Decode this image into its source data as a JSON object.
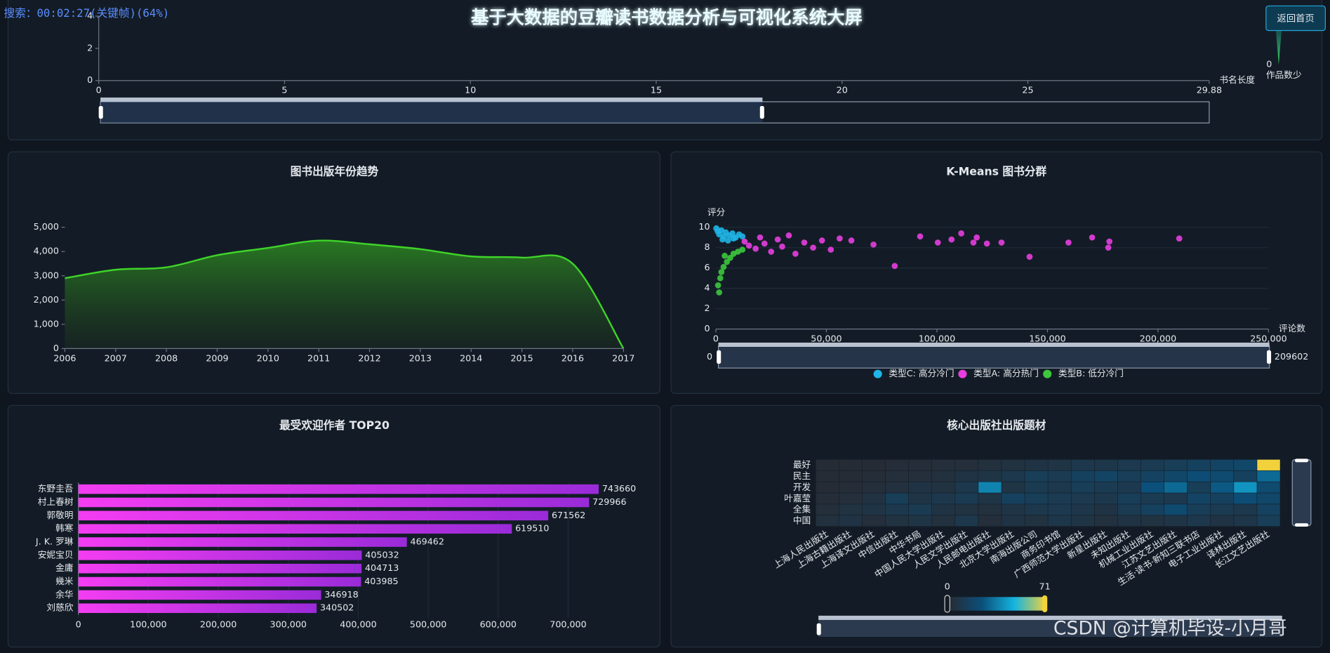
{
  "header": {
    "title": "基于大数据的豆瓣读书数据分析与可视化系统大屏",
    "button": "返回首页",
    "overlay": "搜索：00:02:27(关键帧)(64%)",
    "watermark": "CSDN @计算机毕设-小月哥"
  },
  "chart_data": [
    {
      "type": "bar",
      "x_label": "书名长度",
      "xlim": [
        0,
        29.88
      ],
      "xticks": [
        0,
        5,
        10,
        15,
        20,
        25,
        29.88
      ],
      "ylim": [
        0,
        4
      ],
      "yticks": [
        0,
        2,
        4
      ],
      "visual_map": {
        "min": 0,
        "label": "作品数少"
      }
    },
    {
      "type": "line",
      "title": "图书出版年份趋势",
      "area": true,
      "smooth": true,
      "color": "#3fd42a",
      "x": [
        2006,
        2007,
        2008,
        2009,
        2010,
        2011,
        2012,
        2013,
        2014,
        2015,
        2016,
        2017
      ],
      "values": [
        2900,
        3250,
        3350,
        3850,
        4150,
        4450,
        4300,
        4100,
        3800,
        3750,
        3500,
        0
      ],
      "xlim": [
        2006,
        2017
      ],
      "xticks": [
        2006,
        2007,
        2008,
        2009,
        2010,
        2011,
        2012,
        2013,
        2014,
        2015,
        2016,
        2017
      ],
      "ylim": [
        0,
        5000
      ],
      "yticks": [
        0,
        {
          "value": 1000,
          "label": "1,000"
        },
        {
          "value": 2000,
          "label": "2,000"
        },
        {
          "value": 3000,
          "label": "3,000"
        },
        {
          "value": 4000,
          "label": "4,000"
        },
        {
          "value": 5000,
          "label": "5,000"
        }
      ]
    },
    {
      "type": "scatter",
      "title": "K-Means 图书分群",
      "x_label": "评论数",
      "y_label": "评分",
      "xlim": [
        0,
        250000
      ],
      "xticks": [
        0,
        {
          "value": 50000,
          "label": "50,000"
        },
        {
          "value": 100000,
          "label": "100,000"
        },
        {
          "value": 150000,
          "label": "150,000"
        },
        {
          "value": 200000,
          "label": "200,000"
        },
        {
          "value": 250000,
          "label": "250,000"
        }
      ],
      "ylim": [
        0,
        10
      ],
      "yticks": [
        0,
        2,
        4,
        6,
        8,
        10
      ],
      "zoom_labels": [
        0,
        209602
      ],
      "series": [
        {
          "name": "类型C: 高分冷门",
          "color": "#1fb6e8",
          "x": [
            200,
            800,
            1500,
            2500,
            3500,
            4500,
            6000,
            7500,
            9000,
            10500,
            12000,
            3000,
            5500,
            8000
          ],
          "y": [
            9.9,
            9.6,
            9.3,
            9.7,
            9.1,
            9.5,
            9.2,
            9.4,
            9.0,
            9.3,
            9.1,
            8.8,
            8.7,
            8.9
          ]
        },
        {
          "name": "类型A: 高分热门",
          "color": "#e83ee0",
          "x": [
            13000,
            15000,
            18000,
            20000,
            22000,
            25000,
            28000,
            30000,
            33000,
            36000,
            40000,
            44000,
            48000,
            52000,
            56000,
            61300,
            71300,
            80900,
            92400,
            100400,
            106600,
            111000,
            116500,
            118000,
            122600,
            129200,
            141900,
            159500,
            170200,
            177500,
            178000,
            209602
          ],
          "y": [
            8.6,
            8.2,
            7.9,
            9.0,
            8.4,
            7.6,
            8.8,
            8.1,
            9.2,
            7.4,
            8.5,
            8.0,
            8.7,
            7.8,
            8.9,
            8.7,
            8.3,
            6.2,
            9.1,
            8.5,
            8.8,
            9.4,
            8.5,
            9.0,
            8.4,
            8.5,
            7.1,
            8.5,
            9.0,
            8.0,
            8.6,
            8.9
          ]
        },
        {
          "name": "类型B: 低分冷门",
          "color": "#3dc73d",
          "x": [
            1500,
            1000,
            2000,
            2500,
            3500,
            5000,
            6500,
            8000,
            10000,
            12000,
            4000
          ],
          "y": [
            3.6,
            4.3,
            5.0,
            5.6,
            6.1,
            6.6,
            7.0,
            7.4,
            7.6,
            7.8,
            7.2
          ]
        }
      ]
    },
    {
      "type": "bar",
      "orientation": "horizontal",
      "title": "最受欢迎作者 TOP20",
      "colors": [
        "#f43df2",
        "#9a2bd8"
      ],
      "categories": [
        "东野圭吾",
        "村上春树",
        "郭敬明",
        "韩寒",
        "J. K. 罗琳",
        "安妮宝贝",
        "金庸",
        "幾米",
        "余华",
        "刘慈欣"
      ],
      "values": [
        743660,
        729966,
        671562,
        619510,
        469462,
        405032,
        404713,
        403985,
        346918,
        340502
      ],
      "xlim": [
        0,
        750000
      ],
      "xticks": [
        0,
        {
          "value": 100000,
          "label": "100,000"
        },
        {
          "value": 200000,
          "label": "200,000"
        },
        {
          "value": 300000,
          "label": "300,000"
        },
        {
          "value": 400000,
          "label": "400,000"
        },
        {
          "value": 500000,
          "label": "500,000"
        },
        {
          "value": 600000,
          "label": "600,000"
        },
        {
          "value": 700000,
          "label": "700,000"
        }
      ]
    },
    {
      "type": "heatmap",
      "title": "核心出版社出版题材",
      "colors": [
        "#262c35",
        "#0b4f7a",
        "#14b4e0",
        "#f2d23c"
      ],
      "visual_range": [
        0,
        71
      ],
      "x": [
        "上海人民出版社",
        "上海古籍出版社",
        "上海译文出版社",
        "中信出版社",
        "中华书局",
        "中国人民大学出版社",
        "人民文学出版社",
        "人民邮电出版社",
        "北京大学出版社",
        "南海出版公司",
        "商务印书馆",
        "广西师范大学出版社",
        "新星出版社",
        "未知出版社",
        "机械工业出版社",
        "江苏文艺出版社",
        "生活·读书·新知三联书店",
        "电子工业出版社",
        "译林出版社",
        "长江文艺出版社"
      ],
      "y": [
        "中国",
        "全集",
        "叶嘉莹",
        "开发",
        "民主",
        "最好"
      ],
      "values": [
        [
          3,
          5,
          2,
          4,
          6,
          3,
          8,
          2,
          5,
          4,
          7,
          6,
          3,
          5,
          4,
          6,
          8,
          5,
          7,
          12
        ],
        [
          2,
          4,
          6,
          8,
          10,
          5,
          4,
          3,
          6,
          8,
          9,
          7,
          5,
          10,
          14,
          20,
          12,
          10,
          8,
          15
        ],
        [
          1,
          2,
          4,
          12,
          6,
          8,
          10,
          6,
          14,
          12,
          10,
          9,
          8,
          12,
          10,
          9,
          16,
          14,
          22,
          18
        ],
        [
          0,
          1,
          2,
          3,
          5,
          4,
          8,
          36,
          6,
          10,
          8,
          12,
          10,
          9,
          24,
          30,
          12,
          26,
          40,
          20
        ],
        [
          0,
          0,
          1,
          2,
          2,
          3,
          5,
          6,
          8,
          12,
          10,
          14,
          16,
          12,
          15,
          18,
          22,
          20,
          14,
          30
        ],
        [
          0,
          0,
          0,
          1,
          1,
          2,
          2,
          3,
          4,
          5,
          6,
          8,
          7,
          9,
          10,
          12,
          14,
          16,
          18,
          71
        ]
      ]
    }
  ]
}
